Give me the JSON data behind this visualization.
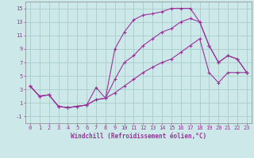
{
  "xlabel": "Windchill (Refroidissement éolien,°C)",
  "background_color": "#cce8e8",
  "grid_color": "#aacccc",
  "line_color": "#993399",
  "xlim": [
    -0.5,
    23.5
  ],
  "ylim": [
    -2.0,
    16.0
  ],
  "yticks": [
    -1,
    1,
    3,
    5,
    7,
    9,
    11,
    13,
    15
  ],
  "xticks": [
    0,
    1,
    2,
    3,
    4,
    5,
    6,
    7,
    8,
    9,
    10,
    11,
    12,
    13,
    14,
    15,
    16,
    17,
    18,
    19,
    20,
    21,
    22,
    23
  ],
  "series1_x": [
    0,
    1,
    2,
    3,
    4,
    5,
    6,
    7,
    8,
    9,
    10,
    11,
    12,
    13,
    14,
    15,
    16,
    17,
    18,
    19,
    20,
    21,
    22,
    23
  ],
  "series1_y": [
    3.5,
    2.0,
    2.2,
    0.5,
    0.3,
    0.5,
    0.7,
    3.3,
    1.7,
    9.0,
    11.5,
    13.3,
    14.0,
    14.2,
    14.5,
    15.0,
    15.0,
    15.0,
    13.0,
    9.5,
    7.0,
    8.0,
    7.5,
    5.5
  ],
  "series2_x": [
    0,
    1,
    2,
    3,
    4,
    5,
    6,
    7,
    8,
    9,
    10,
    11,
    12,
    13,
    14,
    15,
    16,
    17,
    18,
    19,
    20,
    21,
    22,
    23
  ],
  "series2_y": [
    3.5,
    2.0,
    2.2,
    0.5,
    0.3,
    0.5,
    0.7,
    1.5,
    1.7,
    4.5,
    7.0,
    8.0,
    9.5,
    10.5,
    11.5,
    12.0,
    13.0,
    13.5,
    13.0,
    9.5,
    7.0,
    8.0,
    7.5,
    5.5
  ],
  "series3_x": [
    0,
    1,
    2,
    3,
    4,
    5,
    6,
    7,
    8,
    9,
    10,
    11,
    12,
    13,
    14,
    15,
    16,
    17,
    18,
    19,
    20,
    21,
    22,
    23
  ],
  "series3_y": [
    3.5,
    2.0,
    2.2,
    0.5,
    0.3,
    0.5,
    0.7,
    1.5,
    1.7,
    2.5,
    3.5,
    4.5,
    5.5,
    6.3,
    7.0,
    7.5,
    8.5,
    9.5,
    10.5,
    5.5,
    4.0,
    5.5,
    5.5,
    5.5
  ],
  "xlabel_fontsize": 5.5,
  "tick_fontsize": 5,
  "linewidth": 0.8,
  "markersize": 3.5
}
